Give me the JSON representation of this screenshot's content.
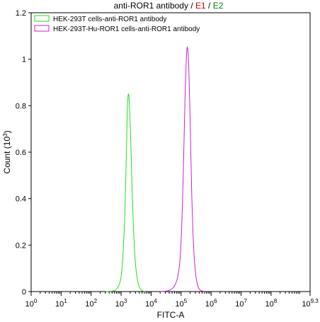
{
  "chart_data": {
    "type": "histogram",
    "title_parts": [
      {
        "text": "anti-ROR1 antibody",
        "color": "#000000"
      },
      {
        "text": " / ",
        "color": "#000000"
      },
      {
        "text": "E1",
        "color": "#cc0000"
      },
      {
        "text": " / ",
        "color": "#000000"
      },
      {
        "text": "E2",
        "color": "#008800"
      }
    ],
    "xlabel": "FITC-A",
    "ylabel": {
      "main": "Count (10",
      "exp": "3",
      "end": ")"
    },
    "x_scale": "log10",
    "xlim": [
      0,
      9.3
    ],
    "ylim": [
      0,
      1.2
    ],
    "x_ticks": [
      {
        "base": "10",
        "exp": "0"
      },
      {
        "base": "10",
        "exp": "1"
      },
      {
        "base": "10",
        "exp": "2"
      },
      {
        "base": "10",
        "exp": "3"
      },
      {
        "base": "10",
        "exp": "4"
      },
      {
        "base": "10",
        "exp": "5"
      },
      {
        "base": "10",
        "exp": "6"
      },
      {
        "base": "10",
        "exp": "7"
      },
      {
        "base": "10",
        "exp": "8"
      },
      {
        "base": "10",
        "exp": "9.3"
      }
    ],
    "y_ticks": [
      "0",
      "0.2",
      "0.4",
      "0.6",
      "0.8",
      "1",
      "1.2"
    ],
    "series": [
      {
        "name": "HEK-293T cells-anti-ROR1 antibody",
        "color": "#22dd22",
        "points": [
          [
            2.5,
            0.0
          ],
          [
            2.7,
            0.002
          ],
          [
            2.8,
            0.006
          ],
          [
            2.9,
            0.02
          ],
          [
            2.98,
            0.05
          ],
          [
            3.03,
            0.1
          ],
          [
            3.08,
            0.2
          ],
          [
            3.12,
            0.32
          ],
          [
            3.15,
            0.46
          ],
          [
            3.18,
            0.62
          ],
          [
            3.2,
            0.75
          ],
          [
            3.22,
            0.82
          ],
          [
            3.24,
            0.85
          ],
          [
            3.26,
            0.84
          ],
          [
            3.28,
            0.79
          ],
          [
            3.31,
            0.69
          ],
          [
            3.34,
            0.56
          ],
          [
            3.37,
            0.42
          ],
          [
            3.41,
            0.28
          ],
          [
            3.45,
            0.17
          ],
          [
            3.5,
            0.09
          ],
          [
            3.56,
            0.04
          ],
          [
            3.62,
            0.015
          ],
          [
            3.7,
            0.004
          ],
          [
            3.8,
            0.0
          ]
        ]
      },
      {
        "name": "HEK-293T-Hu-ROR1 cells-anti-ROR1 antibody",
        "color": "#cc22cc",
        "points": [
          [
            4.3,
            0.0
          ],
          [
            4.5,
            0.002
          ],
          [
            4.65,
            0.008
          ],
          [
            4.78,
            0.025
          ],
          [
            4.88,
            0.06
          ],
          [
            4.95,
            0.12
          ],
          [
            5.0,
            0.22
          ],
          [
            5.04,
            0.36
          ],
          [
            5.08,
            0.55
          ],
          [
            5.11,
            0.72
          ],
          [
            5.14,
            0.88
          ],
          [
            5.17,
            0.99
          ],
          [
            5.2,
            1.05
          ],
          [
            5.23,
            1.03
          ],
          [
            5.26,
            0.94
          ],
          [
            5.29,
            0.8
          ],
          [
            5.32,
            0.62
          ],
          [
            5.35,
            0.44
          ],
          [
            5.39,
            0.27
          ],
          [
            5.44,
            0.14
          ],
          [
            5.5,
            0.06
          ],
          [
            5.57,
            0.02
          ],
          [
            5.65,
            0.005
          ],
          [
            5.8,
            0.0
          ]
        ]
      }
    ],
    "legend_position": "top-left"
  }
}
